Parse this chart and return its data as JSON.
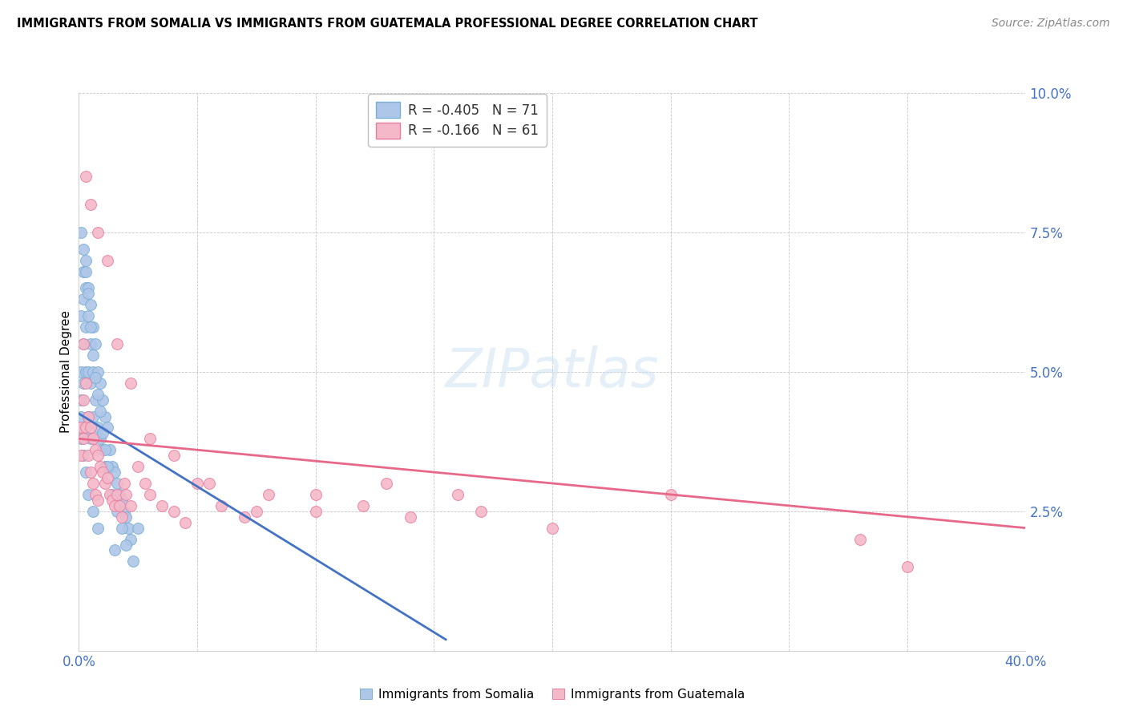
{
  "title": "IMMIGRANTS FROM SOMALIA VS IMMIGRANTS FROM GUATEMALA PROFESSIONAL DEGREE CORRELATION CHART",
  "source": "Source: ZipAtlas.com",
  "ylabel": "Professional Degree",
  "xlabel_somalia": "Immigrants from Somalia",
  "xlabel_guatemala": "Immigrants from Guatemala",
  "xlim": [
    0.0,
    0.4
  ],
  "ylim": [
    0.0,
    0.1
  ],
  "somalia_color": "#aec6e8",
  "somalia_edge": "#7aafd4",
  "guatemala_color": "#f4b8c8",
  "guatemala_edge": "#e87da0",
  "somalia_line_color": "#4472c4",
  "guatemala_line_color": "#e8688a",
  "legend_somalia_R": "-0.405",
  "legend_somalia_N": "71",
  "legend_guatemala_R": "-0.166",
  "legend_guatemala_N": "61",
  "somalia_line_x0": 0.0,
  "somalia_line_y0": 0.0425,
  "somalia_line_x1": 0.155,
  "somalia_line_y1": 0.002,
  "guatemala_line_x0": 0.0,
  "guatemala_line_y0": 0.038,
  "guatemala_line_x1": 0.4,
  "guatemala_line_y1": 0.022,
  "somalia_x": [
    0.001,
    0.001,
    0.001,
    0.001,
    0.002,
    0.002,
    0.002,
    0.002,
    0.002,
    0.003,
    0.003,
    0.003,
    0.003,
    0.003,
    0.004,
    0.004,
    0.004,
    0.004,
    0.005,
    0.005,
    0.005,
    0.005,
    0.006,
    0.006,
    0.006,
    0.007,
    0.007,
    0.008,
    0.008,
    0.009,
    0.009,
    0.01,
    0.01,
    0.011,
    0.011,
    0.012,
    0.013,
    0.014,
    0.015,
    0.016,
    0.017,
    0.018,
    0.019,
    0.02,
    0.021,
    0.022,
    0.001,
    0.002,
    0.003,
    0.004,
    0.005,
    0.006,
    0.007,
    0.008,
    0.009,
    0.01,
    0.011,
    0.012,
    0.014,
    0.016,
    0.018,
    0.02,
    0.023,
    0.001,
    0.002,
    0.003,
    0.004,
    0.006,
    0.008,
    0.015,
    0.025
  ],
  "somalia_y": [
    0.06,
    0.05,
    0.045,
    0.042,
    0.068,
    0.063,
    0.055,
    0.048,
    0.04,
    0.07,
    0.065,
    0.058,
    0.05,
    0.04,
    0.065,
    0.06,
    0.05,
    0.042,
    0.062,
    0.055,
    0.048,
    0.038,
    0.058,
    0.05,
    0.042,
    0.055,
    0.045,
    0.05,
    0.04,
    0.048,
    0.038,
    0.045,
    0.036,
    0.042,
    0.033,
    0.04,
    0.036,
    0.033,
    0.032,
    0.03,
    0.028,
    0.027,
    0.025,
    0.024,
    0.022,
    0.02,
    0.075,
    0.072,
    0.068,
    0.064,
    0.058,
    0.053,
    0.049,
    0.046,
    0.043,
    0.039,
    0.036,
    0.033,
    0.028,
    0.025,
    0.022,
    0.019,
    0.016,
    0.038,
    0.035,
    0.032,
    0.028,
    0.025,
    0.022,
    0.018,
    0.022
  ],
  "guatemala_x": [
    0.001,
    0.001,
    0.002,
    0.002,
    0.003,
    0.003,
    0.004,
    0.004,
    0.005,
    0.005,
    0.006,
    0.006,
    0.007,
    0.007,
    0.008,
    0.008,
    0.009,
    0.01,
    0.011,
    0.012,
    0.013,
    0.014,
    0.015,
    0.016,
    0.017,
    0.018,
    0.019,
    0.02,
    0.022,
    0.025,
    0.028,
    0.03,
    0.035,
    0.04,
    0.045,
    0.05,
    0.06,
    0.07,
    0.08,
    0.1,
    0.12,
    0.14,
    0.16,
    0.2,
    0.25,
    0.003,
    0.005,
    0.008,
    0.012,
    0.016,
    0.022,
    0.03,
    0.04,
    0.055,
    0.075,
    0.1,
    0.13,
    0.17,
    0.33,
    0.35,
    0.002
  ],
  "guatemala_y": [
    0.04,
    0.035,
    0.045,
    0.038,
    0.048,
    0.04,
    0.042,
    0.035,
    0.04,
    0.032,
    0.038,
    0.03,
    0.036,
    0.028,
    0.035,
    0.027,
    0.033,
    0.032,
    0.03,
    0.031,
    0.028,
    0.027,
    0.026,
    0.028,
    0.026,
    0.024,
    0.03,
    0.028,
    0.026,
    0.033,
    0.03,
    0.028,
    0.026,
    0.025,
    0.023,
    0.03,
    0.026,
    0.024,
    0.028,
    0.025,
    0.026,
    0.024,
    0.028,
    0.022,
    0.028,
    0.085,
    0.08,
    0.075,
    0.07,
    0.055,
    0.048,
    0.038,
    0.035,
    0.03,
    0.025,
    0.028,
    0.03,
    0.025,
    0.02,
    0.015,
    0.055
  ]
}
